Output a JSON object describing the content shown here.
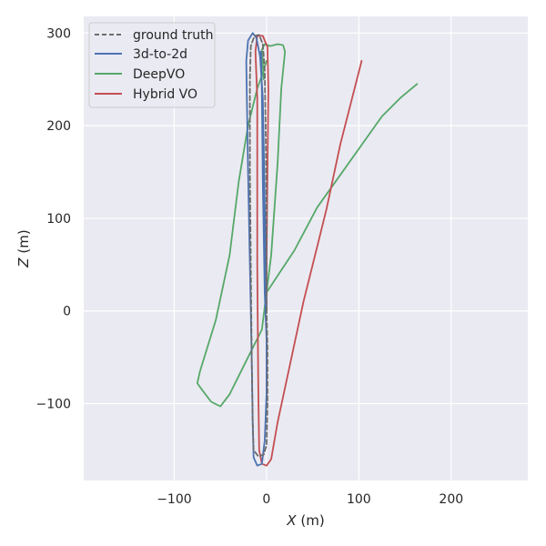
{
  "chart_data": {
    "type": "line",
    "xlabel_var": "X",
    "xlabel_unit": "(m)",
    "ylabel_var": "Z",
    "ylabel_unit": "(m)",
    "xlim": [
      -198,
      283
    ],
    "ylim": [
      -183,
      318
    ],
    "x_ticks": [
      -100,
      0,
      100,
      200
    ],
    "y_ticks": [
      -100,
      0,
      100,
      200,
      300
    ],
    "x_tick_labels": [
      "−100",
      "0",
      "100",
      "200"
    ],
    "y_tick_labels": [
      "−100",
      "0",
      "100",
      "200",
      "300"
    ],
    "grid": true,
    "legend_position": "top-left",
    "series": [
      {
        "name": "ground truth",
        "color": "#6b6b6b",
        "dashed": true,
        "points": [
          [
            0,
            0
          ],
          [
            0,
            120
          ],
          [
            -1,
            200
          ],
          [
            -2,
            260
          ],
          [
            -4,
            288
          ],
          [
            -8,
            298
          ],
          [
            -13,
            297
          ],
          [
            -17,
            286
          ],
          [
            -18,
            250
          ],
          [
            -18,
            150
          ],
          [
            -17,
            50
          ],
          [
            -16,
            -50
          ],
          [
            -15,
            -120
          ],
          [
            -14,
            -150
          ],
          [
            -9,
            -157
          ],
          [
            -3,
            -155
          ],
          [
            0,
            -145
          ],
          [
            1,
            -100
          ],
          [
            1,
            -40
          ],
          [
            0,
            0
          ]
        ]
      },
      {
        "name": "3d-to-2d",
        "color": "#4c72b0",
        "dashed": false,
        "points": [
          [
            0,
            0
          ],
          [
            -2,
            120
          ],
          [
            -4,
            230
          ],
          [
            -7,
            275
          ],
          [
            -11,
            295
          ],
          [
            -15,
            300
          ],
          [
            -20,
            292
          ],
          [
            -22,
            270
          ],
          [
            -20,
            150
          ],
          [
            -18,
            50
          ],
          [
            -16,
            -50
          ],
          [
            -15,
            -120
          ],
          [
            -14,
            -158
          ],
          [
            -10,
            -167
          ],
          [
            -5,
            -165
          ],
          [
            -2,
            -140
          ],
          [
            0,
            -90
          ],
          [
            0,
            -30
          ],
          [
            -2,
            20
          ],
          [
            -4,
            140
          ],
          [
            -5,
            235
          ],
          [
            -6,
            280
          ]
        ]
      },
      {
        "name": "DeepVO",
        "color": "#55a868",
        "dashed": false,
        "points": [
          [
            -3,
            250
          ],
          [
            -5,
            282
          ],
          [
            -2,
            288
          ],
          [
            4,
            286
          ],
          [
            12,
            288
          ],
          [
            18,
            287
          ],
          [
            20,
            280
          ],
          [
            16,
            240
          ],
          [
            12,
            160
          ],
          [
            5,
            60
          ],
          [
            -5,
            -20
          ],
          [
            -25,
            -60
          ],
          [
            -40,
            -90
          ],
          [
            -50,
            -103
          ],
          [
            -60,
            -98
          ],
          [
            -70,
            -85
          ],
          [
            -75,
            -78
          ],
          [
            -72,
            -65
          ],
          [
            -55,
            -10
          ],
          [
            -40,
            60
          ],
          [
            -30,
            140
          ],
          [
            -20,
            200
          ],
          [
            -10,
            240
          ],
          [
            -3,
            260
          ],
          [
            0,
            270
          ]
        ]
      },
      {
        "name": "Hybrid VO",
        "color": "#c44e52",
        "dashed": false,
        "points": [
          [
            103,
            270
          ],
          [
            80,
            180
          ],
          [
            65,
            110
          ],
          [
            55,
            70
          ],
          [
            40,
            10
          ],
          [
            25,
            -60
          ],
          [
            12,
            -120
          ],
          [
            5,
            -160
          ],
          [
            0,
            -167
          ],
          [
            -5,
            -165
          ],
          [
            -8,
            -150
          ],
          [
            -9,
            -80
          ],
          [
            -10,
            50
          ],
          [
            -10,
            150
          ],
          [
            -10,
            230
          ],
          [
            -12,
            280
          ],
          [
            -10,
            297
          ],
          [
            -4,
            297
          ],
          [
            1,
            285
          ],
          [
            2,
            240
          ],
          [
            1,
            150
          ],
          [
            0,
            50
          ],
          [
            0,
            0
          ]
        ]
      },
      {
        "name": "DeepVO",
        "color": "#55a868",
        "dashed": false,
        "points": [
          [
            0,
            20
          ],
          [
            30,
            65
          ],
          [
            55,
            112
          ],
          [
            75,
            140
          ],
          [
            100,
            175
          ],
          [
            125,
            210
          ],
          [
            145,
            230
          ],
          [
            163,
            245
          ]
        ]
      }
    ]
  }
}
